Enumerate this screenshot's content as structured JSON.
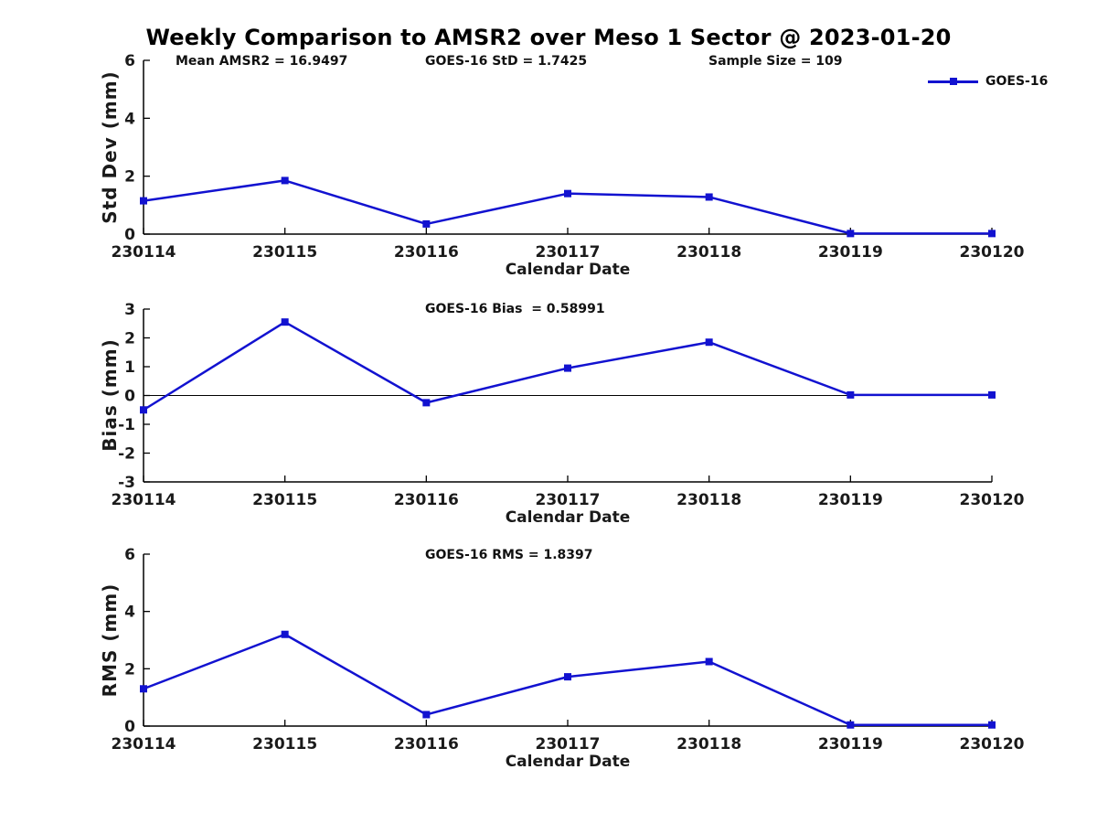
{
  "title": "Weekly Comparison to AMSR2 over Meso 1 Sector @ 2023-01-20",
  "annotations": {
    "mean_amsr2": "Mean AMSR2 = 16.9497",
    "goes16_std": "GOES-16 StD = 1.7425",
    "sample_size": "Sample Size = 109"
  },
  "legend": {
    "label": "GOES-16",
    "marker": "square",
    "position": "top-right"
  },
  "colors": {
    "line": "#1212d0",
    "axis": "#000000",
    "text": "#1a1a1a",
    "background": "#ffffff"
  },
  "chart_data": [
    {
      "type": "line",
      "title": "",
      "ylabel": "Std Dev (mm)",
      "xlabel": "Calendar Date",
      "categories": [
        "230114",
        "230115",
        "230116",
        "230117",
        "230118",
        "230119",
        "230120"
      ],
      "series": [
        {
          "name": "GOES-16",
          "values": [
            1.15,
            1.85,
            0.35,
            1.4,
            1.28,
            0.02,
            0.02
          ]
        }
      ],
      "ylim": [
        0,
        6
      ],
      "yticks": [
        0,
        2,
        4,
        6
      ],
      "zero_line": false,
      "grid": false,
      "marker": "square"
    },
    {
      "type": "line",
      "title": "GOES-16 Bias  = 0.58991",
      "ylabel": "Bias (mm)",
      "xlabel": "Calendar Date",
      "categories": [
        "230114",
        "230115",
        "230116",
        "230117",
        "230118",
        "230119",
        "230120"
      ],
      "series": [
        {
          "name": "GOES-16",
          "values": [
            -0.5,
            2.55,
            -0.25,
            0.95,
            1.85,
            0.02,
            0.02
          ]
        }
      ],
      "ylim": [
        -3,
        3
      ],
      "yticks": [
        -3,
        -2,
        -1,
        0,
        1,
        2,
        3
      ],
      "zero_line": true,
      "grid": false,
      "marker": "square"
    },
    {
      "type": "line",
      "title": "GOES-16 RMS = 1.8397",
      "ylabel": "RMS (mm)",
      "xlabel": "Calendar Date",
      "categories": [
        "230114",
        "230115",
        "230116",
        "230117",
        "230118",
        "230119",
        "230120"
      ],
      "series": [
        {
          "name": "GOES-16",
          "values": [
            1.3,
            3.2,
            0.4,
            1.72,
            2.25,
            0.04,
            0.04
          ]
        }
      ],
      "ylim": [
        0,
        6
      ],
      "yticks": [
        0,
        2,
        4,
        6
      ],
      "zero_line": false,
      "grid": false,
      "marker": "square"
    }
  ]
}
